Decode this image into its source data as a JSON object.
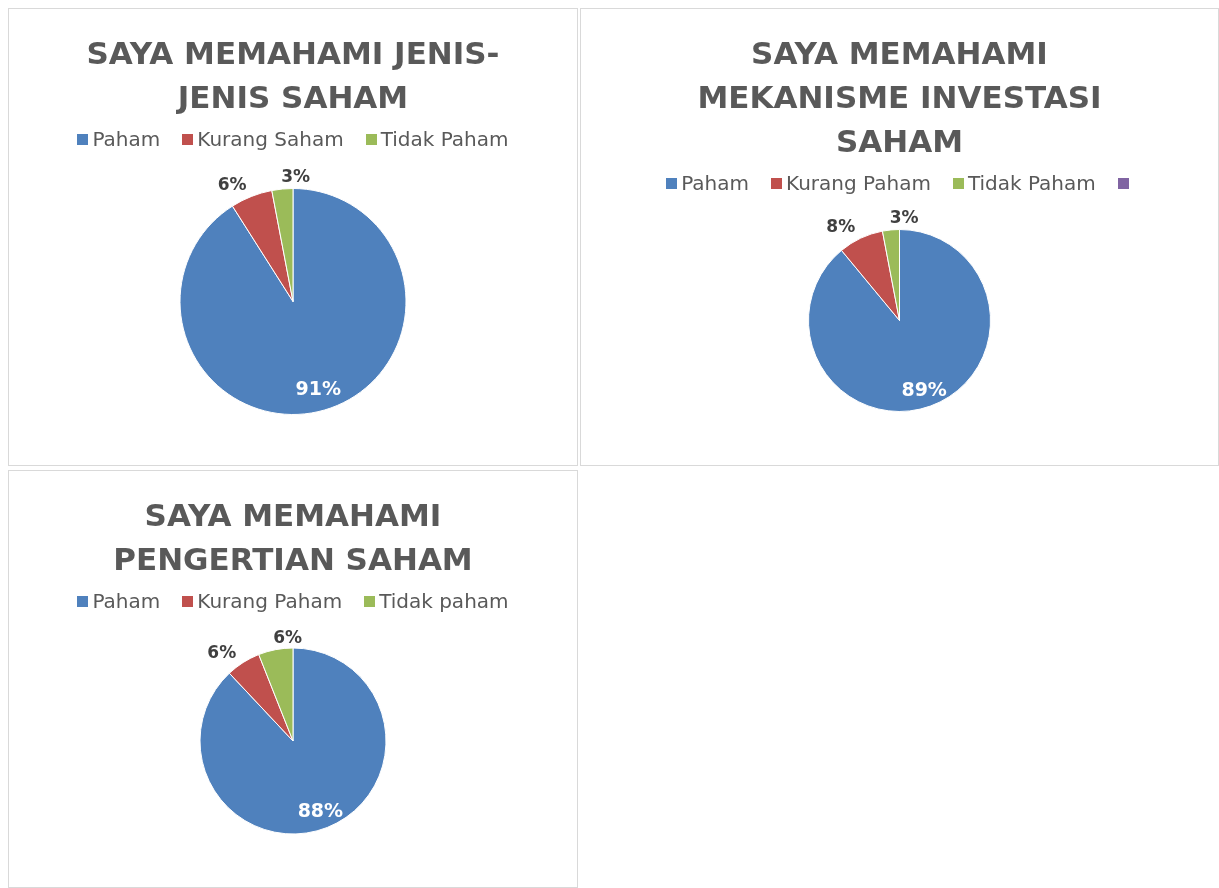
{
  "chart_data": [
    {
      "type": "pie",
      "title": "SAYA MEMAHAMI JENIS-JENIS SAHAM",
      "legend": "top",
      "categories": [
        "Paham",
        "Kurang Saham",
        "Tidak Paham"
      ],
      "values": [
        91,
        6,
        3
      ],
      "colors": [
        "#4f81bd",
        "#c0504d",
        "#9bbb59"
      ],
      "value_labels": [
        "91%",
        "6%",
        "3%"
      ]
    },
    {
      "type": "pie",
      "title": "SAYA MEMAHAMI MEKANISME INVESTASI SAHAM",
      "legend": "top",
      "categories": [
        "Paham",
        "Kurang Paham",
        "Tidak Paham",
        null
      ],
      "values": [
        89,
        8,
        3,
        0
      ],
      "colors": [
        "#4f81bd",
        "#c0504d",
        "#9bbb59",
        "#8064a2"
      ],
      "value_labels": [
        "89%",
        "8%",
        "3%",
        null
      ]
    },
    {
      "type": "pie",
      "title": "SAYA MEMAHAMI PENGERTIAN SAHAM",
      "legend": "top",
      "categories": [
        "Paham",
        "Kurang Paham",
        "Tidak paham"
      ],
      "values": [
        88,
        6,
        6
      ],
      "colors": [
        "#4f81bd",
        "#c0504d",
        "#9bbb59"
      ],
      "value_labels": [
        "88%",
        "6%",
        "6%"
      ]
    }
  ]
}
